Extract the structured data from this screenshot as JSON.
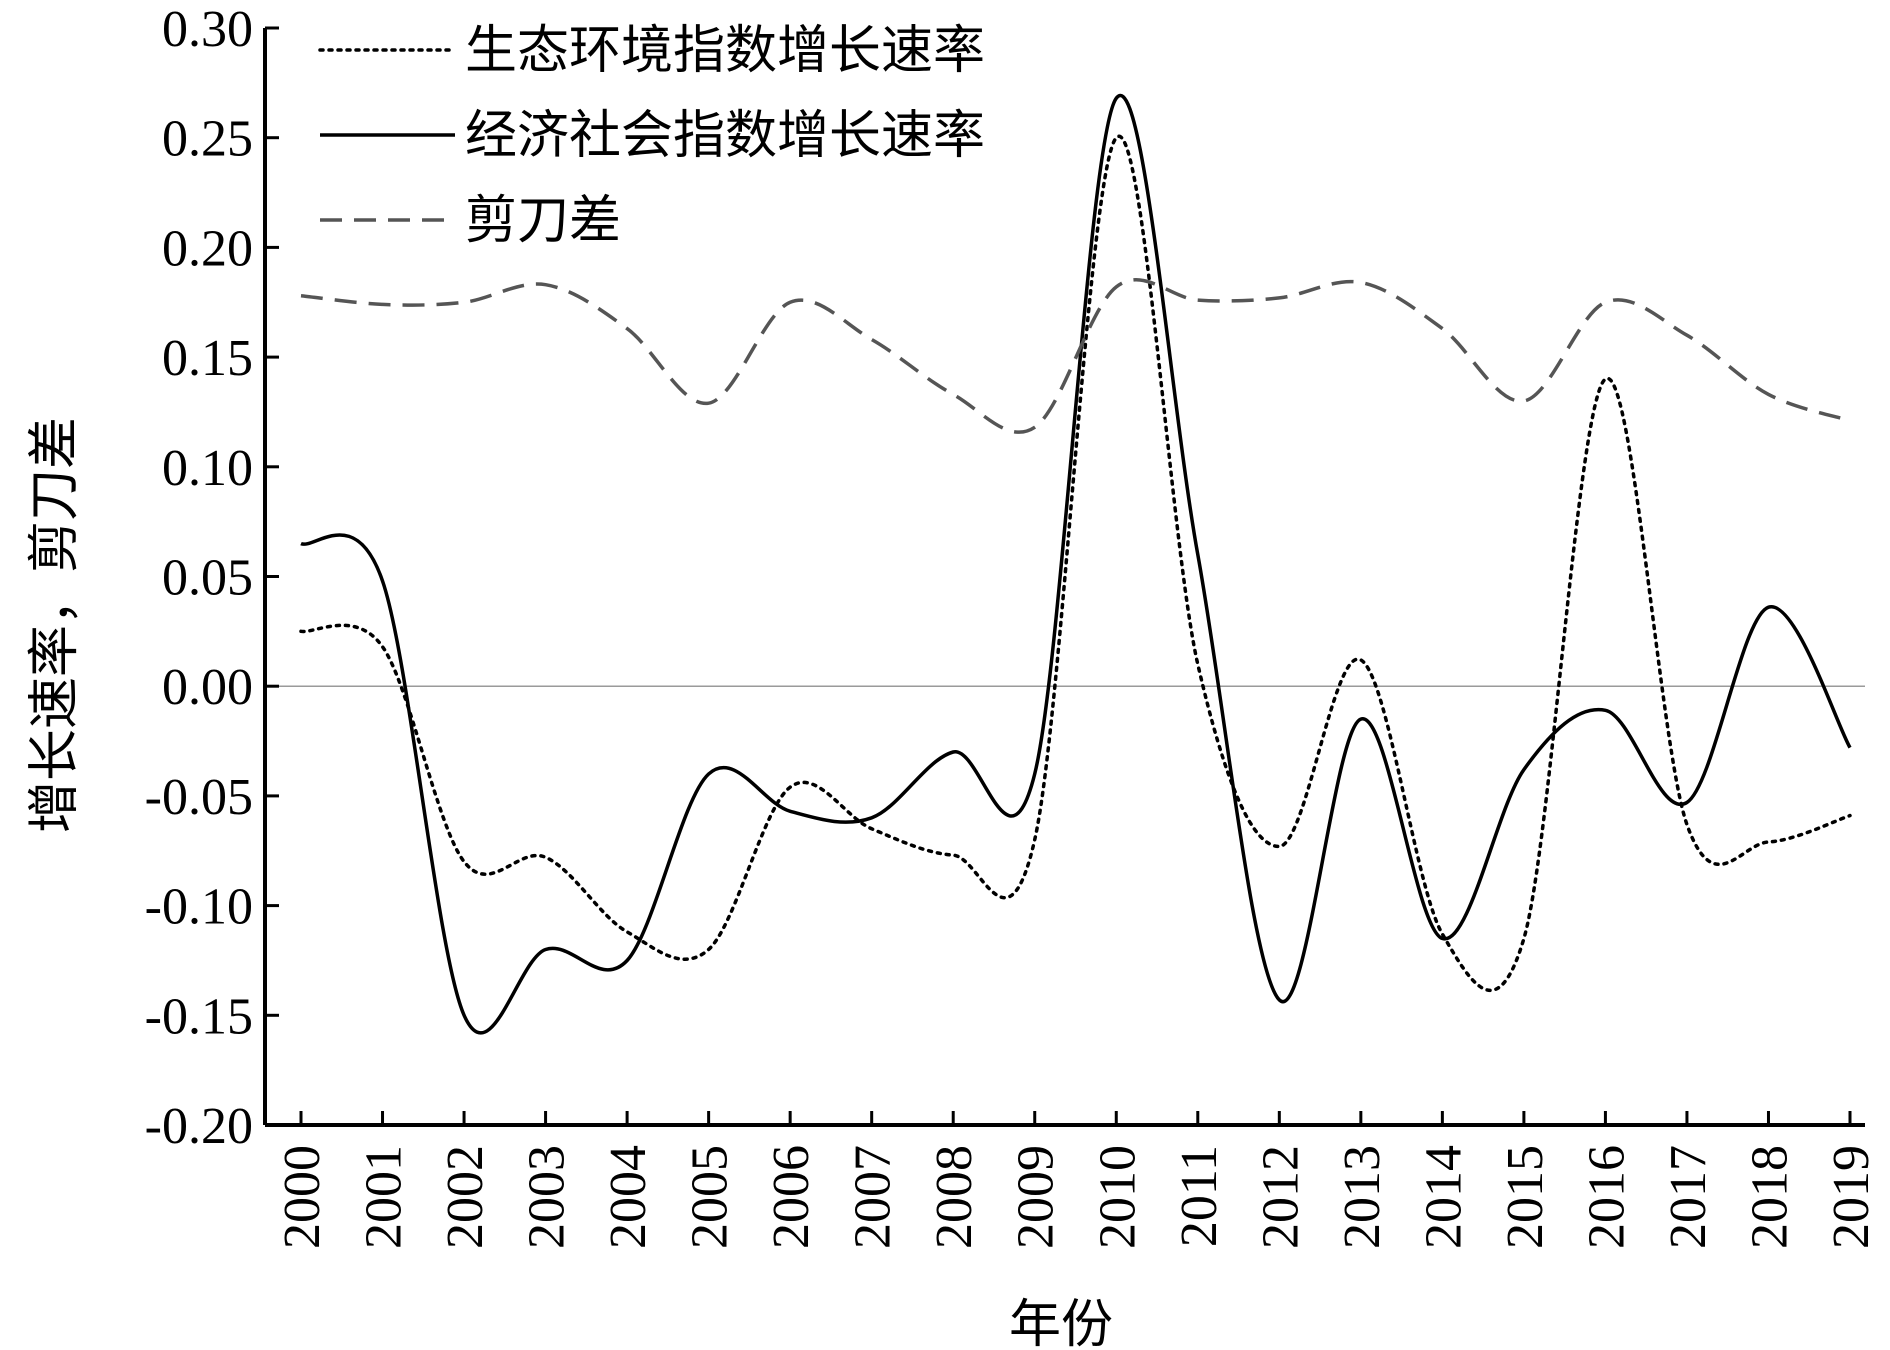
{
  "chart_data": {
    "type": "line",
    "xlabel": "年份",
    "ylabel": "增长速率，剪刀差",
    "x": [
      "2000",
      "2001",
      "2002",
      "2003",
      "2004",
      "2005",
      "2006",
      "2007",
      "2008",
      "2009",
      "2010",
      "2011",
      "2012",
      "2013",
      "2014",
      "2015",
      "2016",
      "2017",
      "2018",
      "2019"
    ],
    "ylim": [
      -0.2,
      0.3
    ],
    "yticks": [
      "0.30",
      "0.25",
      "0.20",
      "0.15",
      "0.10",
      "0.05",
      "0.00",
      "-0.05",
      "-0.10",
      "-0.15",
      "-0.20"
    ],
    "zero_line": true,
    "legend_position": "top-left",
    "series": [
      {
        "name": "生态环境指数增长速率",
        "style": "dotted",
        "color": "#000000",
        "values": [
          0.025,
          0.018,
          -0.08,
          -0.078,
          -0.112,
          -0.12,
          -0.046,
          -0.065,
          -0.077,
          -0.07,
          0.25,
          0.01,
          -0.073,
          0.012,
          -0.113,
          -0.115,
          0.14,
          -0.063,
          -0.071,
          -0.059
        ]
      },
      {
        "name": "经济社会指数增长速率",
        "style": "solid",
        "color": "#000000",
        "values": [
          0.065,
          0.048,
          -0.15,
          -0.12,
          -0.125,
          -0.04,
          -0.057,
          -0.06,
          -0.03,
          -0.04,
          0.268,
          0.06,
          -0.143,
          -0.015,
          -0.115,
          -0.038,
          -0.011,
          -0.053,
          0.036,
          -0.028
        ]
      },
      {
        "name": "剪刀差",
        "style": "dashed",
        "color": "#555555",
        "values": [
          0.178,
          0.174,
          0.175,
          0.183,
          0.163,
          0.129,
          0.175,
          0.158,
          0.133,
          0.118,
          0.182,
          0.176,
          0.177,
          0.184,
          0.163,
          0.13,
          0.175,
          0.16,
          0.133,
          0.121
        ]
      }
    ]
  }
}
